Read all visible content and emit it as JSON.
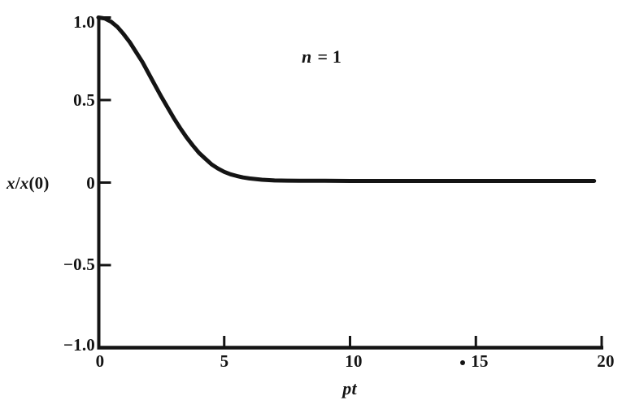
{
  "figure": {
    "background": "#ffffff",
    "ink": "#141414"
  },
  "annotation": {
    "variable": "n",
    "rest": "= 1"
  },
  "y_axis": {
    "title_parts": {
      "p0": "x",
      "p1": "/",
      "p2": "x",
      "p3": "(0)"
    },
    "ticks": [
      {
        "label": "1.0",
        "value": 1
      },
      {
        "label": "0.5",
        "value": 0.5
      },
      {
        "label": "0",
        "value": 0
      },
      {
        "label": "−0.5",
        "value": -0.5
      },
      {
        "label": "−1.0",
        "value": -1
      }
    ]
  },
  "x_axis": {
    "title": "pt",
    "print_artifact_dot": "•",
    "ticks": [
      {
        "label": "0",
        "value": 0
      },
      {
        "label": "5",
        "value": 5
      },
      {
        "label": "10",
        "value": 10
      },
      {
        "label": "15",
        "value": 15
      },
      {
        "label": "20",
        "value": 20
      }
    ]
  },
  "chart_data": {
    "type": "line",
    "title": "",
    "xlabel": "pt",
    "ylabel": "x/x(0)",
    "xlim": [
      0,
      20
    ],
    "ylim": [
      -1.0,
      1.0
    ],
    "grid": false,
    "legend": "none",
    "annotation": "n = 1",
    "series": [
      {
        "name": "x/x(0), n = 1",
        "x": [
          0,
          0.25,
          0.5,
          0.75,
          1,
          1.25,
          1.5,
          1.75,
          2,
          2.25,
          2.5,
          2.75,
          3,
          3.25,
          3.5,
          3.75,
          4,
          4.25,
          4.5,
          4.75,
          5,
          5.25,
          5.5,
          5.75,
          6,
          6.5,
          7,
          7.5,
          8,
          9,
          10,
          11,
          12,
          13,
          14,
          15,
          16,
          17,
          18,
          19,
          19.7
        ],
        "y": [
          1.0,
          0.994,
          0.975,
          0.944,
          0.9,
          0.85,
          0.79,
          0.73,
          0.66,
          0.59,
          0.52,
          0.455,
          0.39,
          0.33,
          0.275,
          0.225,
          0.18,
          0.145,
          0.11,
          0.085,
          0.065,
          0.05,
          0.04,
          0.031,
          0.025,
          0.017,
          0.013,
          0.012,
          0.011,
          0.011,
          0.01,
          0.01,
          0.01,
          0.01,
          0.01,
          0.01,
          0.01,
          0.01,
          0.01,
          0.01,
          0.01
        ]
      }
    ]
  }
}
